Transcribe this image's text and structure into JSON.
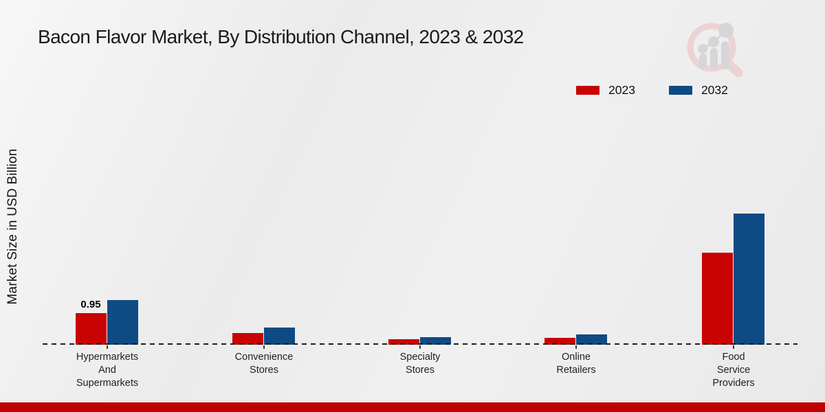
{
  "title": "Bacon Flavor Market, By Distribution Channel, 2023 & 2032",
  "ylabel": "Market Size in USD Billion",
  "legend": [
    {
      "label": "2023",
      "color": "#c90202"
    },
    {
      "label": "2032",
      "color": "#0e4a84"
    }
  ],
  "icons": {
    "logo": "magnifier-bar-chart-watermark-logo"
  },
  "colors": {
    "bar_2023": "#c90202",
    "bar_2032": "#0e4a84",
    "footer_bar": "#c00000",
    "background": "#ededed",
    "baseline": "#1b1b1b"
  },
  "chart_data": {
    "type": "bar",
    "title": "Bacon Flavor Market, By Distribution Channel, 2023 & 2032",
    "xlabel": "",
    "ylabel": "Market Size in USD Billion",
    "categories": [
      "Hypermarkets And Supermarkets",
      "Convenience Stores",
      "Specialty Stores",
      "Online Retailers",
      "Food Service Providers"
    ],
    "category_lines": [
      [
        "Hypermarkets",
        "And",
        "Supermarkets"
      ],
      [
        "Convenience",
        "Stores"
      ],
      [
        "Specialty",
        "Stores"
      ],
      [
        "Online",
        "Retailers"
      ],
      [
        "Food",
        "Service",
        "Providers"
      ]
    ],
    "series": [
      {
        "name": "2023",
        "color": "#c90202",
        "values": [
          0.95,
          0.35,
          0.17,
          0.2,
          2.76
        ],
        "labels": [
          "0.95",
          "",
          "",
          "",
          ""
        ]
      },
      {
        "name": "2032",
        "color": "#0e4a84",
        "values": [
          1.35,
          0.52,
          0.22,
          0.32,
          3.95
        ],
        "labels": [
          "",
          "",
          "",
          "",
          ""
        ]
      }
    ],
    "ylim": [
      0,
      4.2
    ],
    "y_axis_ticks_visible": false,
    "grid": false,
    "baseline_style": "dashed",
    "legend_position": "top-right"
  }
}
